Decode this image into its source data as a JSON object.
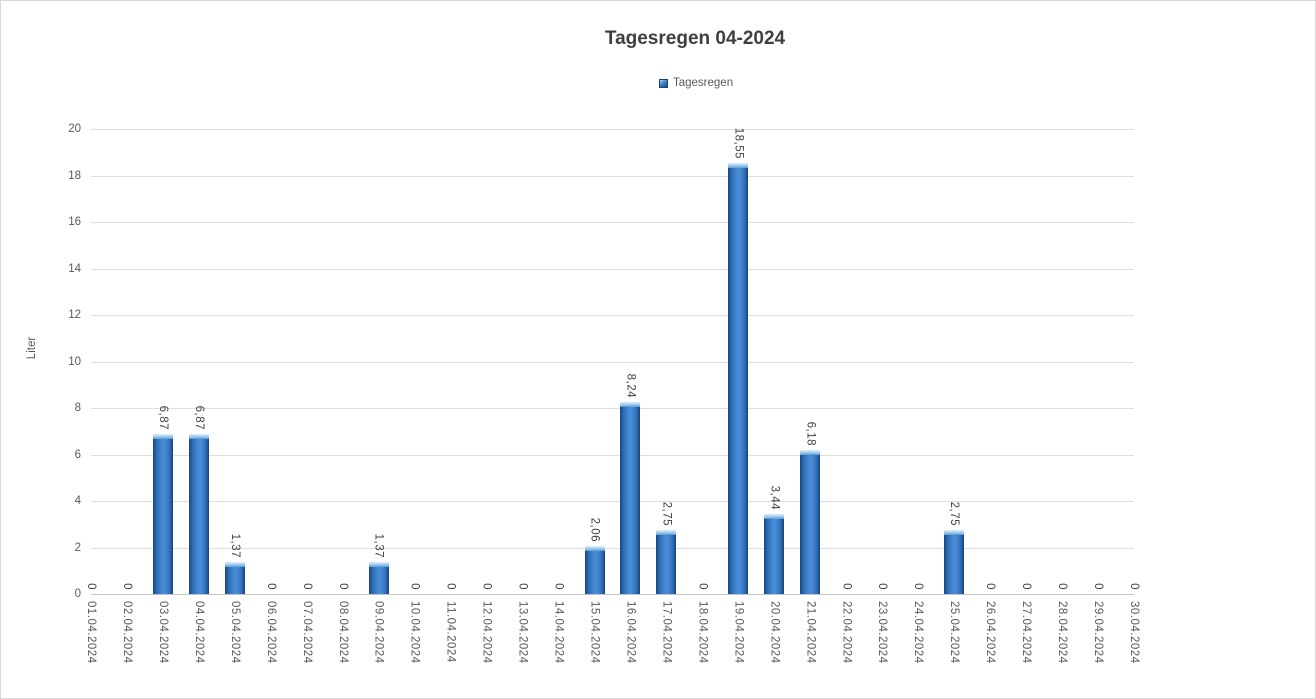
{
  "chart_data": {
    "type": "bar",
    "title": "Tagesregen 04-2024",
    "series_name": "Tagesregen",
    "ylabel": "Liter",
    "xlabel": "",
    "ylim": [
      0,
      20
    ],
    "yticks": [
      0,
      2,
      4,
      6,
      8,
      10,
      12,
      14,
      16,
      18,
      20
    ],
    "grid": true,
    "legend_position": "top-center",
    "bar_color": "#2E75B6",
    "bar_color_edge": "#17477E",
    "bar_color_center": "#478BD5",
    "categories": [
      "01.04.2024",
      "02.04.2024",
      "03.04.2024",
      "04.04.2024",
      "05.04.2024",
      "06.04.2024",
      "07.04.2024",
      "08.04.2024",
      "09.04.2024",
      "10.04.2024",
      "11.04.2024",
      "12.04.2024",
      "13.04.2024",
      "14.04.2024",
      "15.04.2024",
      "16.04.2024",
      "17.04.2024",
      "18.04.2024",
      "19.04.2024",
      "20.04.2024",
      "21.04.2024",
      "22.04.2024",
      "23.04.2024",
      "24.04.2024",
      "25.04.2024",
      "26.04.2024",
      "27.04.2024",
      "28.04.2024",
      "29.04.2024",
      "30.04.2024"
    ],
    "values": [
      0,
      0,
      6.87,
      6.87,
      1.37,
      0,
      0,
      0,
      1.37,
      0,
      0,
      0,
      0,
      0,
      2.06,
      8.24,
      2.75,
      0,
      18.55,
      3.44,
      6.18,
      0,
      0,
      0,
      2.75,
      0,
      0,
      0,
      0,
      0
    ],
    "value_labels": [
      "0",
      "0",
      "6,87",
      "6,87",
      "1,37",
      "0",
      "0",
      "0",
      "1,37",
      "0",
      "0",
      "0",
      "0",
      "0",
      "2,06",
      "8,24",
      "2,75",
      "0",
      "18,55",
      "3,44",
      "6,18",
      "0",
      "0",
      "0",
      "2,75",
      "0",
      "0",
      "0",
      "0",
      "0"
    ]
  },
  "colors": {
    "title": "#3F3F3F",
    "axis_text": "#595959",
    "data_label_text": "#404040",
    "gridline": "#DEDEDE",
    "chart_border": "#D9D9D9"
  }
}
